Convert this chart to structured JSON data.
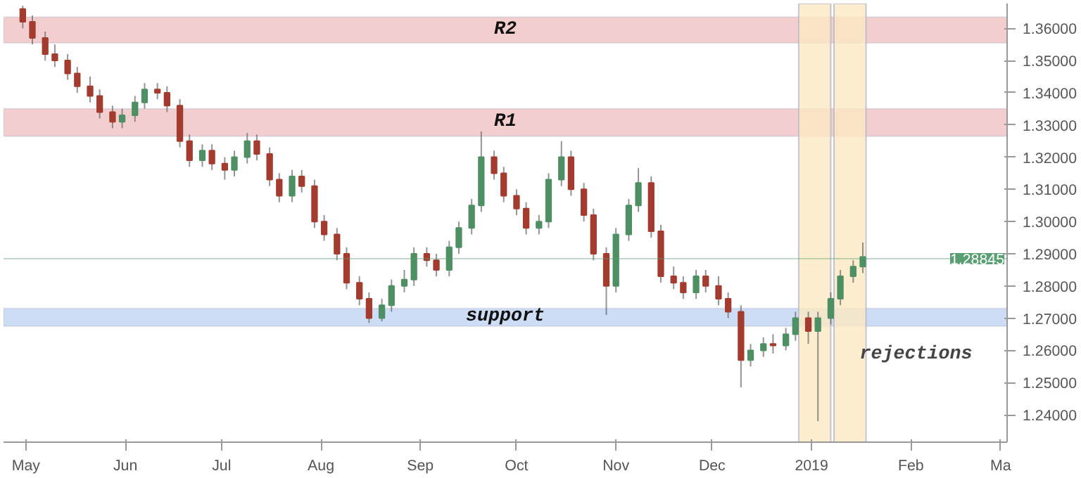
{
  "chart_data": {
    "type": "candlestick",
    "x": [
      "2018-04-30",
      "2018-05-03",
      "2018-05-07",
      "2018-05-10",
      "2018-05-14",
      "2018-05-17",
      "2018-05-21",
      "2018-05-24",
      "2018-05-28",
      "2018-05-31",
      "2018-06-04",
      "2018-06-07",
      "2018-06-11",
      "2018-06-14",
      "2018-06-18",
      "2018-06-21",
      "2018-06-25",
      "2018-06-28",
      "2018-07-02",
      "2018-07-05",
      "2018-07-09",
      "2018-07-12",
      "2018-07-16",
      "2018-07-19",
      "2018-07-23",
      "2018-07-26",
      "2018-07-30",
      "2018-08-02",
      "2018-08-06",
      "2018-08-09",
      "2018-08-13",
      "2018-08-16",
      "2018-08-20",
      "2018-08-23",
      "2018-08-27",
      "2018-08-30",
      "2018-09-03",
      "2018-09-06",
      "2018-09-10",
      "2018-09-13",
      "2018-09-17",
      "2018-09-20",
      "2018-09-24",
      "2018-09-27",
      "2018-10-01",
      "2018-10-04",
      "2018-10-08",
      "2018-10-11",
      "2018-10-15",
      "2018-10-18",
      "2018-10-22",
      "2018-10-25",
      "2018-10-29",
      "2018-11-01",
      "2018-11-05",
      "2018-11-08",
      "2018-11-12",
      "2018-11-15",
      "2018-11-19",
      "2018-11-22",
      "2018-11-26",
      "2018-11-29",
      "2018-12-03",
      "2018-12-06",
      "2018-12-10",
      "2018-12-13",
      "2018-12-17",
      "2018-12-20",
      "2018-12-24",
      "2018-12-27",
      "2018-12-31",
      "2019-01-03",
      "2019-01-07",
      "2019-01-10",
      "2019-01-14",
      "2019-01-17"
    ],
    "ohlc": [
      [
        1.366,
        1.367,
        1.36,
        1.362
      ],
      [
        1.362,
        1.364,
        1.355,
        1.357
      ],
      [
        1.357,
        1.359,
        1.35,
        1.352
      ],
      [
        1.352,
        1.355,
        1.348,
        1.35
      ],
      [
        1.35,
        1.352,
        1.344,
        1.346
      ],
      [
        1.346,
        1.348,
        1.34,
        1.342
      ],
      [
        1.342,
        1.345,
        1.337,
        1.339
      ],
      [
        1.339,
        1.341,
        1.332,
        1.334
      ],
      [
        1.334,
        1.336,
        1.329,
        1.331
      ],
      [
        1.331,
        1.335,
        1.329,
        1.333
      ],
      [
        1.333,
        1.339,
        1.331,
        1.337
      ],
      [
        1.337,
        1.343,
        1.335,
        1.341
      ],
      [
        1.341,
        1.343,
        1.338,
        1.34
      ],
      [
        1.34,
        1.342,
        1.334,
        1.336
      ],
      [
        1.336,
        1.338,
        1.323,
        1.325
      ],
      [
        1.325,
        1.327,
        1.317,
        1.319
      ],
      [
        1.319,
        1.324,
        1.317,
        1.322
      ],
      [
        1.322,
        1.324,
        1.316,
        1.318
      ],
      [
        1.318,
        1.32,
        1.313,
        1.316
      ],
      [
        1.316,
        1.322,
        1.314,
        1.32
      ],
      [
        1.32,
        1.3275,
        1.318,
        1.325
      ],
      [
        1.325,
        1.327,
        1.319,
        1.321
      ],
      [
        1.321,
        1.323,
        1.311,
        1.313
      ],
      [
        1.313,
        1.315,
        1.306,
        1.308
      ],
      [
        1.308,
        1.316,
        1.306,
        1.314
      ],
      [
        1.314,
        1.316,
        1.309,
        1.311
      ],
      [
        1.311,
        1.313,
        1.298,
        1.3
      ],
      [
        1.3,
        1.302,
        1.294,
        1.296
      ],
      [
        1.296,
        1.298,
        1.288,
        1.29
      ],
      [
        1.29,
        1.292,
        1.279,
        1.281
      ],
      [
        1.281,
        1.283,
        1.274,
        1.276
      ],
      [
        1.276,
        1.278,
        1.2685,
        1.27
      ],
      [
        1.27,
        1.276,
        1.269,
        1.274
      ],
      [
        1.274,
        1.282,
        1.272,
        1.28
      ],
      [
        1.28,
        1.285,
        1.278,
        1.282
      ],
      [
        1.282,
        1.292,
        1.28,
        1.29
      ],
      [
        1.29,
        1.292,
        1.286,
        1.288
      ],
      [
        1.288,
        1.29,
        1.283,
        1.285
      ],
      [
        1.285,
        1.294,
        1.283,
        1.292
      ],
      [
        1.292,
        1.3,
        1.29,
        1.298
      ],
      [
        1.298,
        1.307,
        1.296,
        1.305
      ],
      [
        1.305,
        1.328,
        1.303,
        1.32
      ],
      [
        1.32,
        1.322,
        1.313,
        1.315
      ],
      [
        1.315,
        1.317,
        1.306,
        1.308
      ],
      [
        1.308,
        1.31,
        1.302,
        1.304
      ],
      [
        1.304,
        1.306,
        1.296,
        1.298
      ],
      [
        1.298,
        1.302,
        1.296,
        1.3
      ],
      [
        1.3,
        1.315,
        1.298,
        1.313
      ],
      [
        1.313,
        1.325,
        1.311,
        1.32
      ],
      [
        1.32,
        1.322,
        1.308,
        1.31
      ],
      [
        1.31,
        1.312,
        1.3,
        1.302
      ],
      [
        1.302,
        1.304,
        1.288,
        1.29
      ],
      [
        1.29,
        1.292,
        1.271,
        1.28
      ],
      [
        1.28,
        1.298,
        1.278,
        1.296
      ],
      [
        1.296,
        1.307,
        1.294,
        1.305
      ],
      [
        1.305,
        1.3166,
        1.303,
        1.312
      ],
      [
        1.312,
        1.314,
        1.295,
        1.297
      ],
      [
        1.297,
        1.299,
        1.281,
        1.283
      ],
      [
        1.283,
        1.286,
        1.279,
        1.281
      ],
      [
        1.281,
        1.283,
        1.276,
        1.278
      ],
      [
        1.278,
        1.285,
        1.276,
        1.283
      ],
      [
        1.283,
        1.285,
        1.278,
        1.28
      ],
      [
        1.28,
        1.283,
        1.274,
        1.276
      ],
      [
        1.276,
        1.278,
        1.27,
        1.272
      ],
      [
        1.272,
        1.274,
        1.2485,
        1.257
      ],
      [
        1.257,
        1.262,
        1.255,
        1.26
      ],
      [
        1.26,
        1.264,
        1.258,
        1.262
      ],
      [
        1.262,
        1.265,
        1.259,
        1.2615
      ],
      [
        1.2615,
        1.267,
        1.26,
        1.265
      ],
      [
        1.265,
        1.272,
        1.263,
        1.27
      ],
      [
        1.27,
        1.272,
        1.262,
        1.266
      ],
      [
        1.266,
        1.272,
        1.238,
        1.27
      ],
      [
        1.27,
        1.278,
        1.268,
        1.276
      ],
      [
        1.276,
        1.285,
        1.274,
        1.283
      ],
      [
        1.283,
        1.288,
        1.281,
        1.286
      ],
      [
        1.286,
        1.2935,
        1.284,
        1.289
      ]
    ],
    "colors": [
      "#a33b2f",
      "#a33b2f",
      "#a33b2f",
      "#a33b2f",
      "#a33b2f",
      "#a33b2f",
      "#a33b2f",
      "#a33b2f",
      "#a33b2f",
      "#4e8f63",
      "#4e8f63",
      "#4e8f63",
      "#a33b2f",
      "#a33b2f",
      "#a33b2f",
      "#a33b2f",
      "#4e8f63",
      "#a33b2f",
      "#a33b2f",
      "#4e8f63",
      "#4e8f63",
      "#a33b2f",
      "#a33b2f",
      "#a33b2f",
      "#4e8f63",
      "#a33b2f",
      "#a33b2f",
      "#a33b2f",
      "#a33b2f",
      "#a33b2f",
      "#a33b2f",
      "#a33b2f",
      "#4e8f63",
      "#4e8f63",
      "#4e8f63",
      "#4e8f63",
      "#a33b2f",
      "#a33b2f",
      "#4e8f63",
      "#4e8f63",
      "#4e8f63",
      "#4e8f63",
      "#a33b2f",
      "#a33b2f",
      "#a33b2f",
      "#a33b2f",
      "#4e8f63",
      "#4e8f63",
      "#4e8f63",
      "#a33b2f",
      "#a33b2f",
      "#a33b2f",
      "#a33b2f",
      "#4e8f63",
      "#4e8f63",
      "#4e8f63",
      "#a33b2f",
      "#a33b2f",
      "#a33b2f",
      "#a33b2f",
      "#4e8f63",
      "#a33b2f",
      "#a33b2f",
      "#a33b2f",
      "#a33b2f",
      "#4e8f63",
      "#4e8f63",
      "#a33b2f",
      "#4e8f63",
      "#4e8f63",
      "#a33b2f",
      "#4e8f63",
      "#4e8f63",
      "#4e8f63",
      "#4e8f63",
      "#4e8f63"
    ],
    "xlim": [
      "2018-04-24",
      "2019-03-03"
    ],
    "xticks": [
      {
        "value": "2018-05-01",
        "label": "May"
      },
      {
        "value": "2018-06-01",
        "label": "Jun"
      },
      {
        "value": "2018-07-01",
        "label": "Jul"
      },
      {
        "value": "2018-08-01",
        "label": "Aug"
      },
      {
        "value": "2018-09-01",
        "label": "Sep"
      },
      {
        "value": "2018-10-01",
        "label": "Oct"
      },
      {
        "value": "2018-11-01",
        "label": "Nov"
      },
      {
        "value": "2018-12-01",
        "label": "Dec"
      },
      {
        "value": "2019-01-01",
        "label": "2019"
      },
      {
        "value": "2019-02-01",
        "label": "Feb"
      },
      {
        "value": "2019-03-01",
        "label": "Ma"
      }
    ],
    "ylim": [
      1.2315,
      1.3677
    ],
    "yticks": [
      {
        "value": 1.24,
        "label": "1.24000"
      },
      {
        "value": 1.25,
        "label": "1.25000"
      },
      {
        "value": 1.26,
        "label": "1.26000"
      },
      {
        "value": 1.27,
        "label": "1.27000"
      },
      {
        "value": 1.28,
        "label": "1.28000"
      },
      {
        "value": 1.29,
        "label": "1.29000"
      },
      {
        "value": 1.3,
        "label": "1.30000"
      },
      {
        "value": 1.31,
        "label": "1.31000"
      },
      {
        "value": 1.32,
        "label": "1.32000"
      },
      {
        "value": 1.33,
        "label": "1.33000"
      },
      {
        "value": 1.34,
        "label": "1.34000"
      },
      {
        "value": 1.35,
        "label": "1.35000"
      },
      {
        "value": 1.36,
        "label": "1.36000"
      }
    ],
    "grid": false,
    "ref_lines": [
      {
        "axis": "y",
        "value": 1.28845,
        "label": "1.28845",
        "color": "#5a9e74"
      }
    ],
    "bands": [
      {
        "axis": "y",
        "from": 1.3555,
        "to": 1.3635,
        "label": "R2",
        "color": "#f2c9c9"
      },
      {
        "axis": "y",
        "from": 1.3265,
        "to": 1.335,
        "label": "R1",
        "color": "#f2c9c9"
      },
      {
        "axis": "y",
        "from": 1.2675,
        "to": 1.273,
        "label": "support",
        "color": "#c9d9f5"
      },
      {
        "axis": "x",
        "from": "2018-12-28",
        "to": "2019-01-07",
        "color": "#fbe9c2"
      },
      {
        "axis": "x",
        "from": "2019-01-08",
        "to": "2019-01-18",
        "color": "#fbe9c2"
      }
    ],
    "annotations": [
      {
        "text": "rejections",
        "x": "2019-01-16",
        "y": 1.2585
      }
    ]
  }
}
